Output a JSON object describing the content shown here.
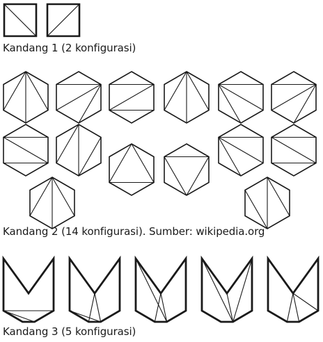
{
  "captions": {
    "cage1": "Kandang 1 (2 konfigurasi)",
    "cage2": "Kandang 2 (14 konfigurasi). Sumber: wikipedia.org",
    "cage3": "Kandang 3 (5 konfigurasi)"
  },
  "colors": {
    "stroke": "#1a1a1a",
    "background": "#ffffff"
  },
  "cage1_configurations": 2,
  "cage2_configurations": 14,
  "cage3_configurations": 5
}
